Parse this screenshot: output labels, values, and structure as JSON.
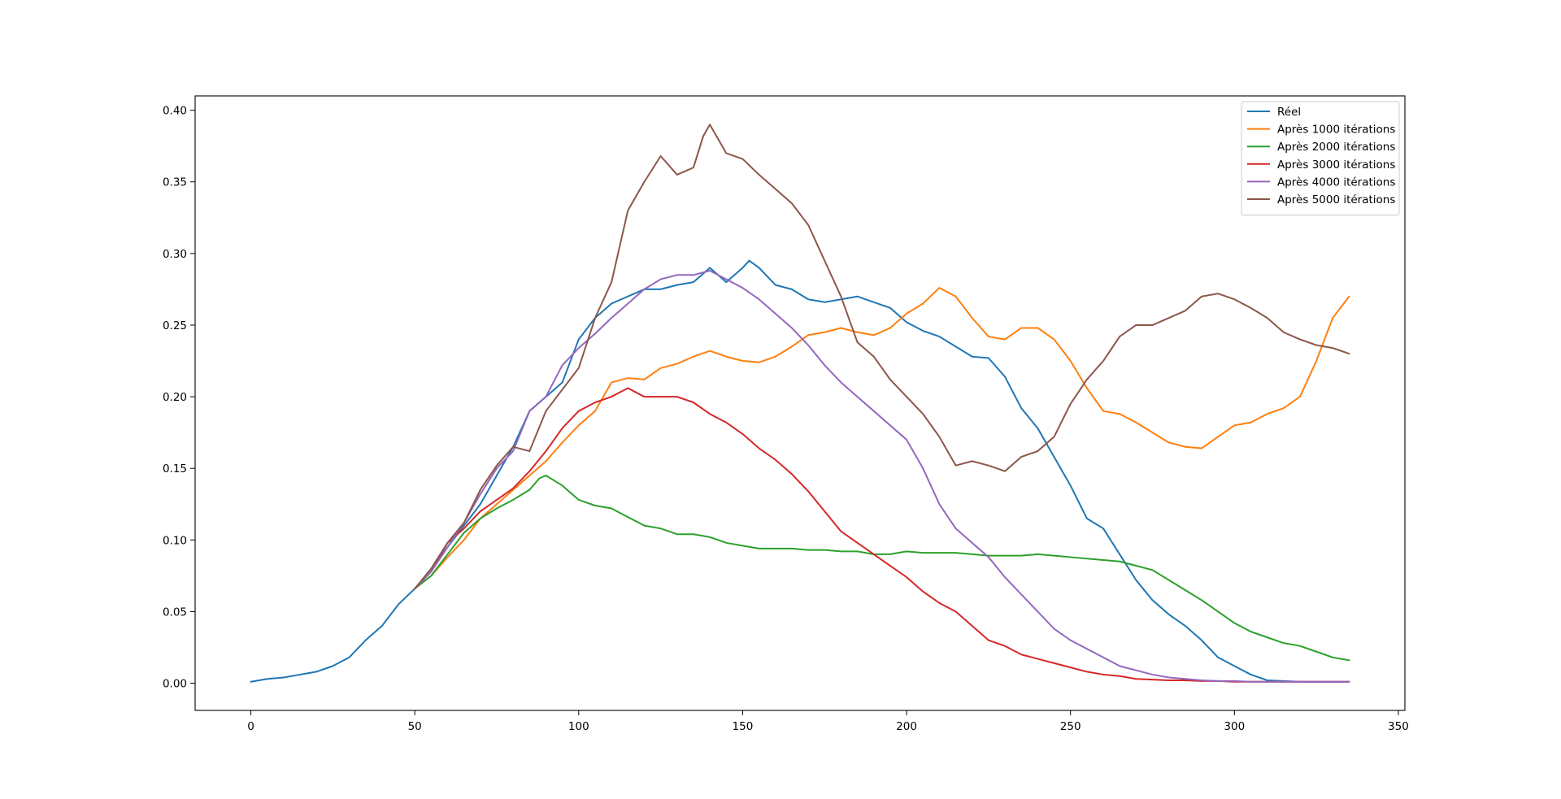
{
  "chart_data": {
    "type": "line",
    "title": "",
    "xlabel": "",
    "ylabel": "",
    "xlim": [
      -17,
      352
    ],
    "ylim": [
      -0.019,
      0.41
    ],
    "x_ticks": [
      0,
      50,
      100,
      150,
      200,
      250,
      300,
      350
    ],
    "y_ticks": [
      0.0,
      0.05,
      0.1,
      0.15,
      0.2,
      0.25,
      0.3,
      0.35,
      0.4
    ],
    "grid": false,
    "legend_position": "top-right",
    "series": [
      {
        "name": "Réel",
        "color": "#1f77b4",
        "x": [
          0,
          5,
          10,
          15,
          20,
          25,
          30,
          35,
          40,
          45,
          50,
          55,
          60,
          65,
          70,
          75,
          80,
          85,
          90,
          95,
          100,
          105,
          110,
          115,
          120,
          125,
          130,
          135,
          140,
          145,
          150,
          152,
          155,
          160,
          165,
          170,
          175,
          180,
          185,
          190,
          195,
          200,
          205,
          210,
          215,
          220,
          225,
          230,
          235,
          240,
          245,
          250,
          255,
          260,
          265,
          270,
          275,
          280,
          285,
          290,
          295,
          300,
          305,
          310,
          315,
          320,
          325,
          330,
          335
        ],
        "y": [
          0.001,
          0.003,
          0.004,
          0.006,
          0.008,
          0.012,
          0.018,
          0.03,
          0.04,
          0.055,
          0.066,
          0.078,
          0.095,
          0.11,
          0.125,
          0.145,
          0.165,
          0.19,
          0.2,
          0.21,
          0.24,
          0.255,
          0.265,
          0.27,
          0.275,
          0.275,
          0.278,
          0.28,
          0.29,
          0.28,
          0.29,
          0.295,
          0.29,
          0.278,
          0.275,
          0.268,
          0.266,
          0.268,
          0.27,
          0.266,
          0.262,
          0.252,
          0.246,
          0.242,
          0.235,
          0.228,
          0.227,
          0.214,
          0.192,
          0.178,
          0.158,
          0.138,
          0.115,
          0.108,
          0.09,
          0.072,
          0.058,
          0.048,
          0.04,
          0.03,
          0.018,
          0.012,
          0.006,
          0.002,
          0.0015,
          0.001,
          0.001,
          0.001,
          0.001
        ]
      },
      {
        "name": "Après 1000 itérations",
        "color": "#ff7f0e",
        "x": [
          50,
          55,
          60,
          65,
          70,
          75,
          80,
          85,
          90,
          95,
          100,
          105,
          110,
          115,
          120,
          125,
          130,
          135,
          140,
          145,
          150,
          155,
          160,
          165,
          170,
          175,
          180,
          185,
          190,
          195,
          200,
          205,
          210,
          215,
          220,
          225,
          230,
          235,
          240,
          245,
          250,
          255,
          260,
          265,
          270,
          275,
          280,
          285,
          290,
          295,
          300,
          305,
          310,
          315,
          320,
          325,
          330,
          335
        ],
        "y": [
          0.066,
          0.075,
          0.088,
          0.1,
          0.115,
          0.125,
          0.135,
          0.145,
          0.155,
          0.168,
          0.18,
          0.19,
          0.21,
          0.213,
          0.212,
          0.22,
          0.223,
          0.228,
          0.232,
          0.228,
          0.225,
          0.224,
          0.228,
          0.235,
          0.243,
          0.245,
          0.248,
          0.245,
          0.243,
          0.248,
          0.258,
          0.265,
          0.276,
          0.27,
          0.255,
          0.242,
          0.24,
          0.248,
          0.248,
          0.24,
          0.225,
          0.206,
          0.19,
          0.188,
          0.182,
          0.175,
          0.168,
          0.165,
          0.164,
          0.172,
          0.18,
          0.182,
          0.188,
          0.192,
          0.2,
          0.225,
          0.255,
          0.27
        ]
      },
      {
        "name": "Après 2000 itérations",
        "color": "#2ca02c",
        "x": [
          50,
          55,
          60,
          65,
          70,
          75,
          80,
          85,
          88,
          90,
          95,
          100,
          105,
          110,
          115,
          120,
          125,
          130,
          135,
          140,
          145,
          150,
          155,
          160,
          165,
          170,
          175,
          180,
          185,
          190,
          195,
          200,
          205,
          210,
          215,
          220,
          225,
          230,
          235,
          240,
          245,
          250,
          255,
          260,
          265,
          270,
          275,
          280,
          285,
          290,
          295,
          300,
          305,
          310,
          315,
          320,
          325,
          330,
          335
        ],
        "y": [
          0.066,
          0.075,
          0.09,
          0.105,
          0.115,
          0.122,
          0.128,
          0.135,
          0.143,
          0.145,
          0.138,
          0.128,
          0.124,
          0.122,
          0.116,
          0.11,
          0.108,
          0.104,
          0.104,
          0.102,
          0.098,
          0.096,
          0.094,
          0.094,
          0.094,
          0.093,
          0.093,
          0.092,
          0.092,
          0.09,
          0.09,
          0.092,
          0.091,
          0.091,
          0.091,
          0.09,
          0.089,
          0.089,
          0.089,
          0.09,
          0.089,
          0.088,
          0.087,
          0.086,
          0.085,
          0.082,
          0.079,
          0.072,
          0.065,
          0.058,
          0.05,
          0.042,
          0.036,
          0.032,
          0.028,
          0.026,
          0.022,
          0.018,
          0.016
        ]
      },
      {
        "name": "Après 3000 itérations",
        "color": "#d62728",
        "x": [
          50,
          55,
          60,
          65,
          70,
          75,
          80,
          85,
          90,
          95,
          100,
          105,
          110,
          115,
          120,
          125,
          130,
          135,
          140,
          145,
          150,
          155,
          160,
          165,
          170,
          175,
          180,
          185,
          190,
          195,
          200,
          205,
          210,
          215,
          220,
          225,
          230,
          235,
          240,
          245,
          250,
          255,
          260,
          265,
          270,
          275,
          280,
          285,
          290,
          295,
          300,
          305,
          310,
          315,
          320,
          325,
          330,
          335
        ],
        "y": [
          0.066,
          0.078,
          0.098,
          0.108,
          0.12,
          0.128,
          0.136,
          0.148,
          0.162,
          0.178,
          0.19,
          0.196,
          0.2,
          0.206,
          0.2,
          0.2,
          0.2,
          0.196,
          0.188,
          0.182,
          0.174,
          0.164,
          0.156,
          0.146,
          0.134,
          0.12,
          0.106,
          0.098,
          0.09,
          0.082,
          0.074,
          0.064,
          0.056,
          0.05,
          0.04,
          0.03,
          0.026,
          0.02,
          0.017,
          0.014,
          0.011,
          0.008,
          0.006,
          0.005,
          0.003,
          0.0025,
          0.002,
          0.002,
          0.0015,
          0.0015,
          0.001,
          0.001,
          0.001,
          0.001,
          0.001,
          0.001,
          0.001,
          0.001
        ]
      },
      {
        "name": "Après 4000 itérations",
        "color": "#9467bd",
        "x": [
          50,
          55,
          60,
          65,
          70,
          75,
          80,
          85,
          90,
          95,
          100,
          105,
          110,
          115,
          120,
          125,
          130,
          135,
          140,
          145,
          150,
          155,
          160,
          165,
          170,
          175,
          180,
          185,
          190,
          195,
          200,
          205,
          210,
          215,
          220,
          225,
          230,
          235,
          240,
          245,
          250,
          255,
          260,
          265,
          270,
          275,
          280,
          285,
          290,
          295,
          300,
          305,
          310,
          315,
          320,
          325,
          330,
          335
        ],
        "y": [
          0.066,
          0.078,
          0.095,
          0.112,
          0.132,
          0.15,
          0.162,
          0.19,
          0.2,
          0.222,
          0.234,
          0.244,
          0.255,
          0.265,
          0.275,
          0.282,
          0.285,
          0.285,
          0.288,
          0.282,
          0.276,
          0.268,
          0.258,
          0.248,
          0.236,
          0.222,
          0.21,
          0.2,
          0.19,
          0.18,
          0.17,
          0.15,
          0.125,
          0.108,
          0.098,
          0.088,
          0.074,
          0.062,
          0.05,
          0.038,
          0.03,
          0.024,
          0.018,
          0.012,
          0.009,
          0.006,
          0.004,
          0.003,
          0.002,
          0.0015,
          0.0015,
          0.001,
          0.001,
          0.001,
          0.001,
          0.001,
          0.001,
          0.001
        ]
      },
      {
        "name": "Après 5000 itérations",
        "color": "#8c564b",
        "x": [
          50,
          55,
          60,
          65,
          70,
          75,
          80,
          85,
          90,
          95,
          100,
          105,
          110,
          115,
          120,
          125,
          130,
          135,
          138,
          140,
          145,
          150,
          155,
          160,
          165,
          170,
          175,
          180,
          185,
          190,
          195,
          200,
          205,
          210,
          215,
          220,
          225,
          230,
          235,
          240,
          245,
          250,
          255,
          260,
          265,
          270,
          275,
          280,
          285,
          290,
          295,
          300,
          305,
          310,
          315,
          320,
          325,
          330,
          335
        ],
        "y": [
          0.066,
          0.08,
          0.098,
          0.112,
          0.135,
          0.152,
          0.165,
          0.162,
          0.19,
          0.205,
          0.22,
          0.255,
          0.28,
          0.33,
          0.35,
          0.368,
          0.355,
          0.36,
          0.382,
          0.39,
          0.37,
          0.366,
          0.355,
          0.345,
          0.335,
          0.32,
          0.295,
          0.27,
          0.238,
          0.228,
          0.212,
          0.2,
          0.188,
          0.172,
          0.152,
          0.155,
          0.152,
          0.148,
          0.158,
          0.162,
          0.172,
          0.195,
          0.212,
          0.225,
          0.242,
          0.25,
          0.25,
          0.255,
          0.26,
          0.27,
          0.272,
          0.268,
          0.262,
          0.255,
          0.245,
          0.24,
          0.236,
          0.234,
          0.23
        ]
      }
    ]
  }
}
